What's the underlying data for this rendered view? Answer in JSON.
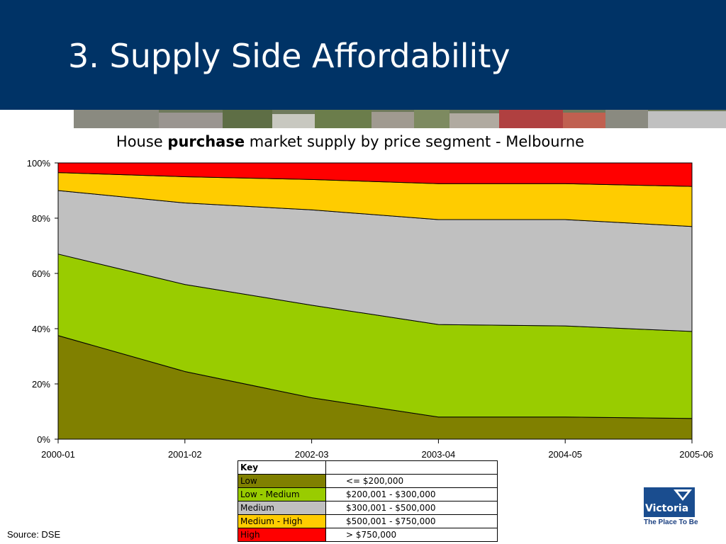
{
  "slide": {
    "title": "3.  Supply Side Affordability",
    "source": "Source: DSE"
  },
  "chart_heading": {
    "pre": "House",
    "bold": "purchase",
    "post": "market supply by price segment - Melbourne"
  },
  "chart_data": {
    "type": "area",
    "stacked": true,
    "percent": true,
    "categories": [
      "2000-01",
      "2001-02",
      "2002-03",
      "2003-04",
      "2004-05",
      "2005-06"
    ],
    "ylim": [
      0,
      100
    ],
    "yticks": [
      "0%",
      "20%",
      "40%",
      "60%",
      "80%",
      "100%"
    ],
    "grid": false,
    "series": [
      {
        "name": "Low",
        "color": "#808000",
        "values": [
          37.5,
          24.5,
          15,
          8,
          8,
          7.5
        ]
      },
      {
        "name": "Low - Medium",
        "color": "#99cc00",
        "values": [
          29.5,
          31.5,
          33.5,
          33.5,
          33,
          31.5
        ]
      },
      {
        "name": "Medium",
        "color": "#c0c0c0",
        "values": [
          23,
          29.5,
          34.5,
          38,
          38.5,
          38
        ]
      },
      {
        "name": "Medium - High",
        "color": "#ffcc00",
        "values": [
          6.5,
          9.5,
          11,
          13,
          13,
          14.5
        ]
      },
      {
        "name": "High",
        "color": "#ff0000",
        "values": [
          3.5,
          5,
          6,
          7.5,
          7.5,
          8.5
        ]
      }
    ]
  },
  "key": {
    "heading": "Key",
    "rows": [
      {
        "label": "Low",
        "range": "<= $200,000",
        "color": "#808000"
      },
      {
        "label": "Low - Medium",
        "range": "$200,001 - $300,000",
        "color": "#99cc00"
      },
      {
        "label": "Medium",
        "range": "$300,001 - $500,000",
        "color": "#c0c0c0"
      },
      {
        "label": "Medium - High",
        "range": "$500,001 - $750,000",
        "color": "#ffcc00"
      },
      {
        "label": "High",
        "range": "> $750,000",
        "color": "#ff0000"
      }
    ]
  },
  "logo": {
    "word": "Victoria",
    "tagline": "The Place To Be"
  },
  "colors": {
    "header": "#003366"
  }
}
